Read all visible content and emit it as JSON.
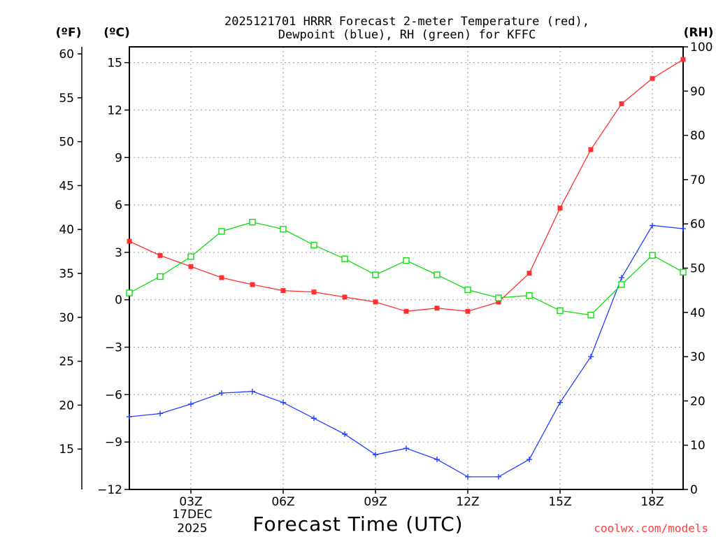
{
  "chart_data": {
    "type": "line",
    "title_lines": [
      "2025121701 HRRR Forecast 2-meter Temperature (red),",
      "Dewpoint (blue), RH (green) for KFFC"
    ],
    "xlabel": "Forecast Time (UTC)",
    "date_label": [
      "17DEC",
      "2025"
    ],
    "credit": "coolwx.com/models",
    "x_hours": [
      1,
      2,
      3,
      4,
      5,
      6,
      7,
      8,
      9,
      10,
      11,
      12,
      13,
      14,
      15,
      16,
      17,
      18,
      19
    ],
    "xlim": [
      1,
      19
    ],
    "x_ticks": [
      {
        "hour": 3,
        "label": "03Z"
      },
      {
        "hour": 6,
        "label": "06Z"
      },
      {
        "hour": 9,
        "label": "09Z"
      },
      {
        "hour": 12,
        "label": "12Z"
      },
      {
        "hour": 15,
        "label": "15Z"
      },
      {
        "hour": 18,
        "label": "18Z"
      }
    ],
    "left_axis_c": {
      "unit_label": "(ºC)",
      "range": [
        -12,
        16
      ],
      "ticks": [
        {
          "value": 15,
          "label": "15"
        },
        {
          "value": 12,
          "label": "12"
        },
        {
          "value": 9,
          "label": "9"
        },
        {
          "value": 6,
          "label": "6"
        },
        {
          "value": 3,
          "label": "3"
        },
        {
          "value": 0,
          "label": "0"
        },
        {
          "value": -3,
          "label": "−3"
        },
        {
          "value": -6,
          "label": "−6"
        },
        {
          "value": -9,
          "label": "−9"
        },
        {
          "value": -12,
          "label": "−12"
        }
      ]
    },
    "left_axis_f": {
      "unit_label": "(ºF)",
      "range": [
        10.4,
        60.8
      ],
      "ticks": [
        {
          "value": 60,
          "label": "60"
        },
        {
          "value": 55,
          "label": "55"
        },
        {
          "value": 50,
          "label": "50"
        },
        {
          "value": 45,
          "label": "45"
        },
        {
          "value": 40,
          "label": "40"
        },
        {
          "value": 35,
          "label": "35"
        },
        {
          "value": 30,
          "label": "30"
        },
        {
          "value": 25,
          "label": "25"
        },
        {
          "value": 20,
          "label": "20"
        },
        {
          "value": 15,
          "label": "15"
        }
      ]
    },
    "right_axis_rh": {
      "unit_label": "(RH)",
      "range": [
        0,
        100
      ],
      "ticks": [
        {
          "value": 100,
          "label": "100"
        },
        {
          "value": 90,
          "label": "90"
        },
        {
          "value": 80,
          "label": "80"
        },
        {
          "value": 70,
          "label": "70"
        },
        {
          "value": 60,
          "label": "60"
        },
        {
          "value": 50,
          "label": "50"
        },
        {
          "value": 40,
          "label": "40"
        },
        {
          "value": 30,
          "label": "30"
        },
        {
          "value": 20,
          "label": "20"
        },
        {
          "value": 10,
          "label": "10"
        },
        {
          "value": 0,
          "label": "0"
        }
      ]
    },
    "series": [
      {
        "name": "2-meter Temperature",
        "axis": "celsius",
        "color": "#ff3030",
        "marker": "filled-square",
        "values": [
          3.7,
          2.8,
          2.1,
          1.4,
          0.96,
          0.58,
          0.49,
          0.17,
          -0.14,
          -0.73,
          -0.53,
          -0.73,
          -0.14,
          1.68,
          5.8,
          9.5,
          12.4,
          14.0,
          15.2
        ]
      },
      {
        "name": "Dewpoint",
        "axis": "celsius",
        "color": "#2040ff",
        "marker": "plus",
        "values": [
          -7.4,
          -7.2,
          -6.6,
          -5.9,
          -5.8,
          -6.5,
          -7.5,
          -8.5,
          -9.8,
          -9.4,
          -10.1,
          -11.2,
          -11.2,
          -10.1,
          -6.5,
          -3.6,
          1.4,
          4.7,
          4.5
        ]
      },
      {
        "name": "RH",
        "axis": "rh",
        "color": "#10dd10",
        "marker": "hollow-square",
        "values": [
          44.4,
          48.1,
          52.6,
          58.3,
          60.4,
          58.8,
          55.2,
          52.1,
          48.5,
          51.7,
          48.5,
          45.1,
          43.3,
          43.8,
          40.4,
          39.4,
          46.3,
          52.9,
          49.1
        ]
      }
    ]
  }
}
